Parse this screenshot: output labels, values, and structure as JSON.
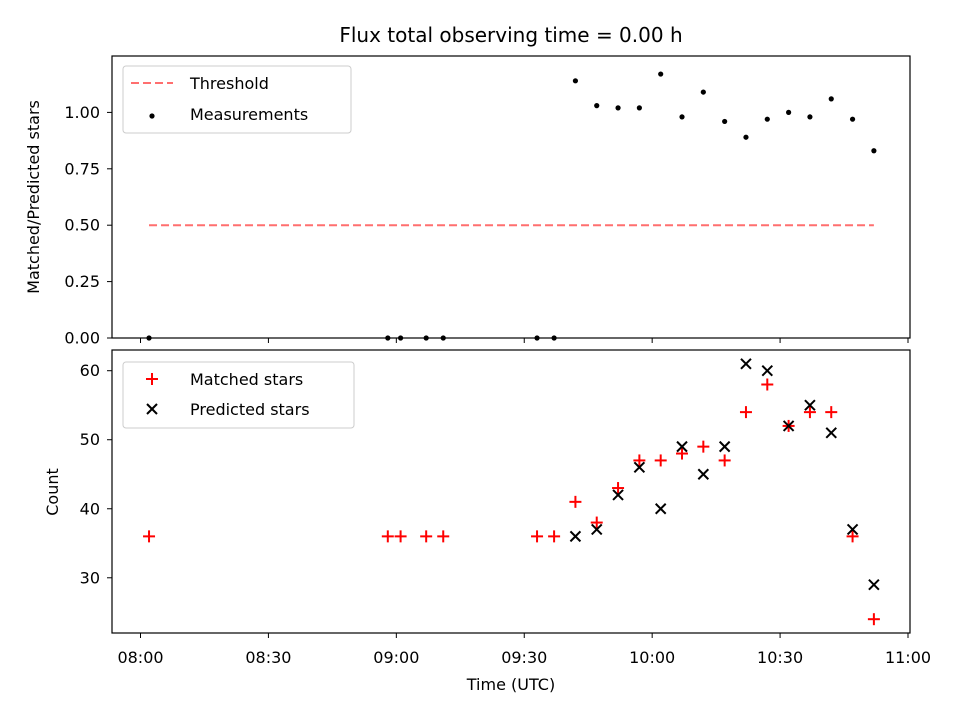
{
  "chart_data": {
    "title": "Flux total observing time = 0.00 h",
    "xlabel": "Time (UTC)",
    "x_ticks": [
      "08:00",
      "08:30",
      "09:00",
      "09:30",
      "10:00",
      "10:30",
      "11:00"
    ],
    "top": {
      "type": "scatter",
      "ylabel": "Matched/Predicted stars",
      "ylim": [
        0,
        1.25
      ],
      "y_ticks": [
        "0.00",
        "0.25",
        "0.50",
        "0.75",
        "1.00"
      ],
      "legend_position": "top-left",
      "threshold": {
        "name": "Threshold",
        "value": 0.5,
        "x_start": "08:02",
        "x_end": "10:52",
        "color": "#ff6f6f"
      },
      "measurements": {
        "name": "Measurements",
        "color": "#000000",
        "x": [
          "08:02",
          "08:58",
          "09:01",
          "09:07",
          "09:11",
          "09:33",
          "09:37",
          "09:42",
          "09:47",
          "09:52",
          "09:57",
          "10:02",
          "10:07",
          "10:12",
          "10:17",
          "10:22",
          "10:27",
          "10:32",
          "10:37",
          "10:42",
          "10:47",
          "10:52"
        ],
        "y": [
          0.0,
          0.0,
          0.0,
          0.0,
          0.0,
          0.0,
          0.0,
          1.14,
          1.03,
          1.02,
          1.02,
          1.17,
          0.98,
          1.09,
          0.96,
          0.89,
          0.97,
          1.0,
          0.98,
          1.06,
          0.97,
          0.83
        ]
      }
    },
    "bottom": {
      "type": "scatter",
      "ylabel": "Count",
      "ylim": [
        22,
        63
      ],
      "y_ticks": [
        "30",
        "40",
        "50",
        "60"
      ],
      "legend_position": "top-left",
      "series": [
        {
          "name": "Matched stars",
          "marker": "plus",
          "color": "#ff0000",
          "x": [
            "08:02",
            "08:58",
            "09:01",
            "09:07",
            "09:11",
            "09:33",
            "09:37",
            "09:42",
            "09:47",
            "09:52",
            "09:57",
            "10:02",
            "10:07",
            "10:12",
            "10:17",
            "10:22",
            "10:27",
            "10:32",
            "10:37",
            "10:42",
            "10:47",
            "10:52"
          ],
          "y": [
            36,
            36,
            36,
            36,
            36,
            36,
            36,
            41,
            38,
            43,
            47,
            47,
            48,
            49,
            47,
            54,
            58,
            52,
            54,
            54,
            36,
            24
          ]
        },
        {
          "name": "Predicted stars",
          "marker": "x",
          "color": "#000000",
          "x": [
            "09:42",
            "09:47",
            "09:52",
            "09:57",
            "10:02",
            "10:07",
            "10:12",
            "10:17",
            "10:22",
            "10:27",
            "10:32",
            "10:37",
            "10:42",
            "10:47",
            "10:52"
          ],
          "y": [
            36,
            37,
            42,
            46,
            40,
            49,
            45,
            49,
            61,
            60,
            52,
            55,
            51,
            37,
            29
          ]
        }
      ]
    }
  }
}
